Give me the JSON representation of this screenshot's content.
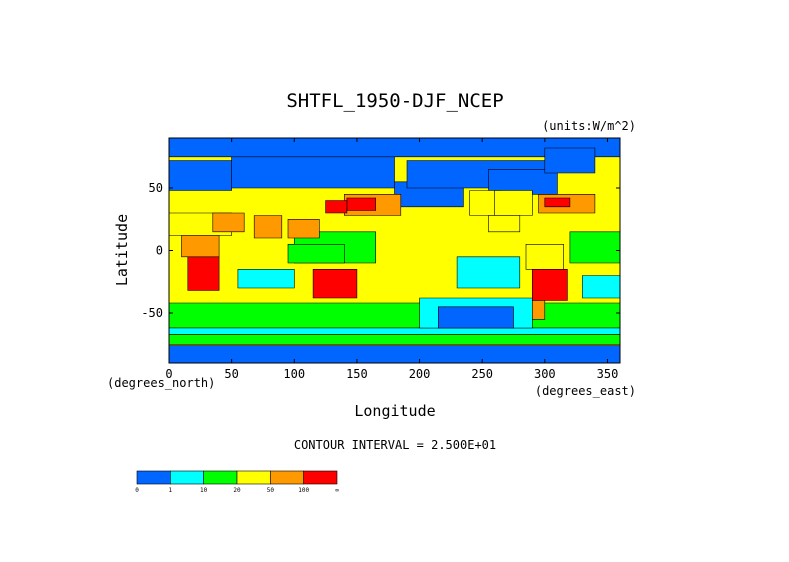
{
  "chart_data": {
    "type": "heatmap",
    "title": "SHTFL_1950-DJF_NCEP",
    "units_label": "(units:W/m^2)",
    "xlabel": "Longitude",
    "ylabel": "Latitude",
    "x_unit_label": "(degrees_east)",
    "y_unit_label": "(degrees_north)",
    "x_ticks": [
      0,
      50,
      100,
      150,
      200,
      250,
      300,
      350
    ],
    "y_ticks": [
      -50,
      0,
      50
    ],
    "xlim": [
      0,
      360
    ],
    "ylim": [
      -90,
      90
    ],
    "contour_interval_label": "CONTOUR INTERVAL = 2.500E+01",
    "colorbar": {
      "levels": [
        "0",
        "1",
        "10",
        "20",
        "50",
        "100",
        "∞"
      ],
      "colors": [
        "#0066ff",
        "#00ffff",
        "#00ff00",
        "#ffff00",
        "#ff9900",
        "#ff0000"
      ]
    },
    "regions": [
      {
        "name": "ocean-base",
        "class": 3,
        "points": [
          [
            0,
            90
          ],
          [
            360,
            90
          ],
          [
            360,
            -90
          ],
          [
            0,
            -90
          ]
        ]
      },
      {
        "name": "southern-ocean-band",
        "class": 2,
        "points": [
          [
            0,
            -42
          ],
          [
            360,
            -42
          ],
          [
            360,
            -62
          ],
          [
            0,
            -62
          ]
        ]
      },
      {
        "name": "antarctic-coast-band",
        "class": 2,
        "points": [
          [
            0,
            -67
          ],
          [
            360,
            -67
          ],
          [
            360,
            -75
          ],
          [
            0,
            -75
          ]
        ]
      },
      {
        "name": "antarctica-interior",
        "class": 0,
        "points": [
          [
            0,
            -76
          ],
          [
            360,
            -76
          ],
          [
            360,
            -90
          ],
          [
            0,
            -90
          ]
        ]
      },
      {
        "name": "antarctic-open-water",
        "class": 1,
        "points": [
          [
            0,
            -62
          ],
          [
            360,
            -62
          ],
          [
            360,
            -67
          ],
          [
            0,
            -67
          ]
        ]
      },
      {
        "name": "south-pacific-cold",
        "class": 1,
        "points": [
          [
            200,
            -38
          ],
          [
            290,
            -38
          ],
          [
            290,
            -62
          ],
          [
            200,
            -62
          ]
        ]
      },
      {
        "name": "south-pacific-deep",
        "class": 0,
        "points": [
          [
            215,
            -45
          ],
          [
            275,
            -45
          ],
          [
            275,
            -62
          ],
          [
            215,
            -62
          ]
        ]
      },
      {
        "name": "south-atlantic-cold",
        "class": 1,
        "points": [
          [
            330,
            -20
          ],
          [
            360,
            -20
          ],
          [
            360,
            -38
          ],
          [
            330,
            -38
          ]
        ]
      },
      {
        "name": "indian-ocean-cold",
        "class": 1,
        "points": [
          [
            55,
            -15
          ],
          [
            100,
            -15
          ],
          [
            100,
            -30
          ],
          [
            55,
            -30
          ]
        ]
      },
      {
        "name": "east-pacific-cold",
        "class": 1,
        "points": [
          [
            230,
            -5
          ],
          [
            280,
            -5
          ],
          [
            280,
            -30
          ],
          [
            230,
            -30
          ]
        ]
      },
      {
        "name": "north-pacific-east",
        "class": 0,
        "points": [
          [
            180,
            55
          ],
          [
            235,
            55
          ],
          [
            235,
            35
          ],
          [
            180,
            35
          ]
        ]
      },
      {
        "name": "north-pacific-warm",
        "class": 4,
        "points": [
          [
            140,
            45
          ],
          [
            185,
            45
          ],
          [
            185,
            28
          ],
          [
            140,
            28
          ]
        ]
      },
      {
        "name": "kuroshio-core",
        "class": 5,
        "points": [
          [
            142,
            42
          ],
          [
            165,
            42
          ],
          [
            165,
            32
          ],
          [
            142,
            32
          ]
        ]
      },
      {
        "name": "warm-pool",
        "class": 2,
        "points": [
          [
            100,
            15
          ],
          [
            165,
            15
          ],
          [
            165,
            -10
          ],
          [
            100,
            -10
          ]
        ]
      },
      {
        "name": "tropical-atlantic",
        "class": 2,
        "points": [
          [
            320,
            15
          ],
          [
            360,
            15
          ],
          [
            360,
            -10
          ],
          [
            320,
            -10
          ]
        ]
      },
      {
        "name": "north-atlantic-warm",
        "class": 4,
        "points": [
          [
            295,
            45
          ],
          [
            340,
            45
          ],
          [
            340,
            30
          ],
          [
            295,
            30
          ]
        ]
      },
      {
        "name": "gulf-stream-core",
        "class": 5,
        "points": [
          [
            300,
            42
          ],
          [
            320,
            42
          ],
          [
            320,
            35
          ],
          [
            300,
            35
          ]
        ]
      },
      {
        "name": "arctic-ocean",
        "class": 0,
        "points": [
          [
            0,
            90
          ],
          [
            360,
            90
          ],
          [
            360,
            75
          ],
          [
            0,
            75
          ]
        ]
      },
      {
        "name": "siberia",
        "class": 0,
        "points": [
          [
            50,
            75
          ],
          [
            180,
            75
          ],
          [
            180,
            50
          ],
          [
            50,
            50
          ]
        ]
      },
      {
        "name": "europe",
        "class": 0,
        "points": [
          [
            0,
            72
          ],
          [
            50,
            72
          ],
          [
            50,
            48
          ],
          [
            0,
            48
          ]
        ]
      },
      {
        "name": "north-america",
        "class": 0,
        "points": [
          [
            190,
            72
          ],
          [
            300,
            72
          ],
          [
            300,
            50
          ],
          [
            190,
            50
          ]
        ]
      },
      {
        "name": "canada-east",
        "class": 0,
        "points": [
          [
            255,
            65
          ],
          [
            310,
            65
          ],
          [
            310,
            45
          ],
          [
            255,
            45
          ]
        ]
      },
      {
        "name": "greenland",
        "class": 0,
        "points": [
          [
            300,
            82
          ],
          [
            340,
            82
          ],
          [
            340,
            62
          ],
          [
            300,
            62
          ]
        ]
      },
      {
        "name": "sahara",
        "class": 3,
        "points": [
          [
            0,
            30
          ],
          [
            50,
            30
          ],
          [
            50,
            12
          ],
          [
            0,
            12
          ]
        ]
      },
      {
        "name": "arabia",
        "class": 4,
        "points": [
          [
            35,
            30
          ],
          [
            60,
            30
          ],
          [
            60,
            15
          ],
          [
            35,
            15
          ]
        ]
      },
      {
        "name": "india",
        "class": 4,
        "points": [
          [
            68,
            28
          ],
          [
            90,
            28
          ],
          [
            90,
            10
          ],
          [
            68,
            10
          ]
        ]
      },
      {
        "name": "tropical-africa",
        "class": 4,
        "points": [
          [
            10,
            12
          ],
          [
            40,
            12
          ],
          [
            40,
            -5
          ],
          [
            10,
            -5
          ]
        ]
      },
      {
        "name": "south-africa",
        "class": 5,
        "points": [
          [
            15,
            -5
          ],
          [
            40,
            -5
          ],
          [
            40,
            -32
          ],
          [
            15,
            -32
          ]
        ]
      },
      {
        "name": "australia",
        "class": 5,
        "points": [
          [
            115,
            -15
          ],
          [
            150,
            -15
          ],
          [
            150,
            -38
          ],
          [
            115,
            -38
          ]
        ]
      },
      {
        "name": "us-west-arid",
        "class": 3,
        "points": [
          [
            240,
            48
          ],
          [
            265,
            48
          ],
          [
            265,
            28
          ],
          [
            240,
            28
          ]
        ]
      },
      {
        "name": "us-central",
        "class": 3,
        "points": [
          [
            260,
            48
          ],
          [
            290,
            48
          ],
          [
            290,
            28
          ],
          [
            260,
            28
          ]
        ]
      },
      {
        "name": "mexico",
        "class": 3,
        "points": [
          [
            255,
            28
          ],
          [
            280,
            28
          ],
          [
            280,
            15
          ],
          [
            255,
            15
          ]
        ]
      },
      {
        "name": "amazon",
        "class": 3,
        "points": [
          [
            285,
            5
          ],
          [
            315,
            5
          ],
          [
            315,
            -15
          ],
          [
            285,
            -15
          ]
        ]
      },
      {
        "name": "south-america-south",
        "class": 5,
        "points": [
          [
            290,
            -15
          ],
          [
            318,
            -15
          ],
          [
            318,
            -40
          ],
          [
            290,
            -40
          ]
        ]
      },
      {
        "name": "patagonia",
        "class": 4,
        "points": [
          [
            290,
            -40
          ],
          [
            300,
            -40
          ],
          [
            300,
            -55
          ],
          [
            290,
            -55
          ]
        ]
      },
      {
        "name": "japan-sea-warm",
        "class": 5,
        "points": [
          [
            125,
            40
          ],
          [
            142,
            40
          ],
          [
            142,
            30
          ],
          [
            125,
            30
          ]
        ]
      },
      {
        "name": "indonesia",
        "class": 2,
        "points": [
          [
            95,
            5
          ],
          [
            140,
            5
          ],
          [
            140,
            -10
          ],
          [
            95,
            -10
          ]
        ]
      },
      {
        "name": "southeast-asia",
        "class": 4,
        "points": [
          [
            95,
            25
          ],
          [
            120,
            25
          ],
          [
            120,
            10
          ],
          [
            95,
            10
          ]
        ]
      }
    ]
  }
}
